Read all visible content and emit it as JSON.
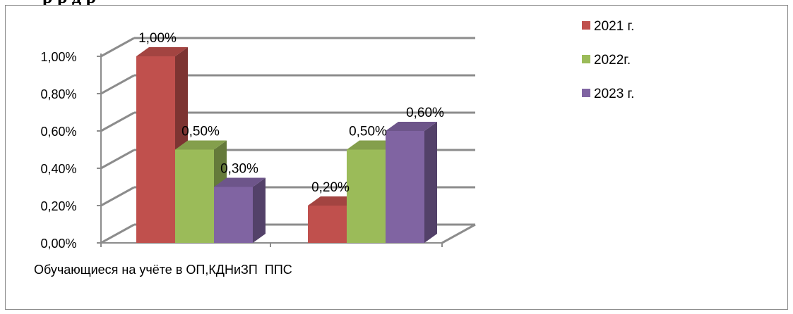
{
  "page": {
    "heading_partial": "р     р    д                р"
  },
  "chart_data": {
    "type": "bar",
    "title": "",
    "categories": [
      "Обучающиеся на учёте в ОП,КДНиЗП",
      "ППС"
    ],
    "series": [
      {
        "name": "2021 г.",
        "values": [
          1.0,
          0.2
        ],
        "labels": [
          "1,00%",
          "0,20%"
        ],
        "color": "#C0504D"
      },
      {
        "name": "2022г.",
        "values": [
          0.5,
          0.5
        ],
        "labels": [
          "0,50%",
          "0,50%"
        ],
        "color": "#9BBB59"
      },
      {
        "name": "2023 г.",
        "values": [
          0.3,
          0.6
        ],
        "labels": [
          "0,30%",
          "0,60%"
        ],
        "color": "#8064A2"
      }
    ],
    "y_ticks": [
      {
        "value": 0.0,
        "label": "0,00%"
      },
      {
        "value": 0.2,
        "label": "0,20%"
      },
      {
        "value": 0.4,
        "label": "0,40%"
      },
      {
        "value": 0.6,
        "label": "0,60%"
      },
      {
        "value": 0.8,
        "label": "0,80%"
      },
      {
        "value": 1.0,
        "label": "1,00%"
      }
    ],
    "ylim": [
      0,
      1.0
    ],
    "ylabel": "",
    "xlabel": "",
    "grid": true,
    "three_d": true,
    "legend_position": "right"
  }
}
